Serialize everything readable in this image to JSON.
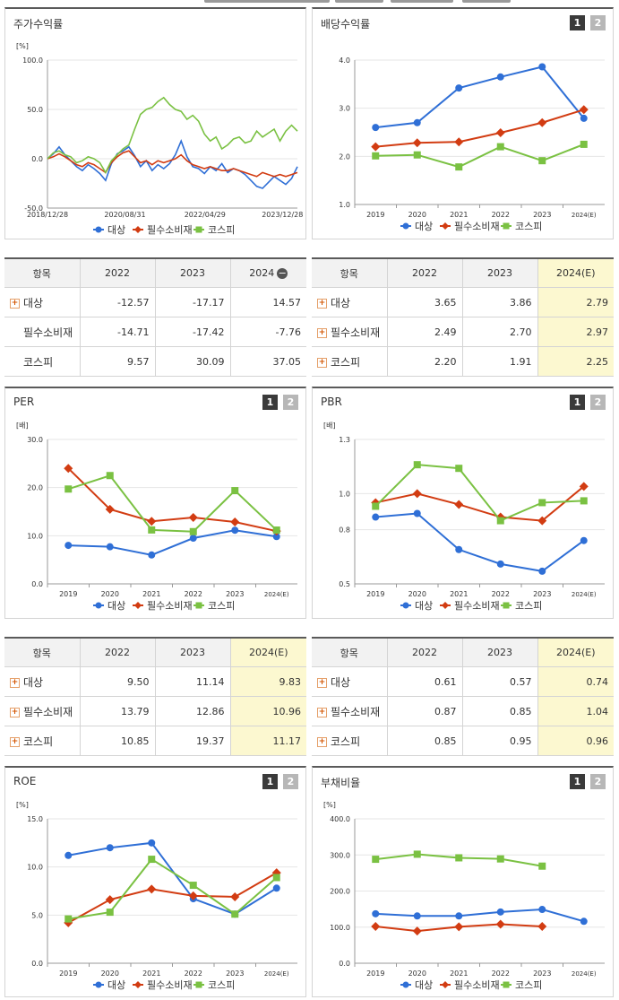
{
  "colors": {
    "daesang": "#2f6fd6",
    "consumer": "#d23c12",
    "kospi": "#7ac142"
  },
  "legend": [
    "대상",
    "필수소비재",
    "코스피"
  ],
  "panels": {
    "stock": {
      "title": "주가수익률"
    },
    "dividend": {
      "title": "배당수익률",
      "btn1": "1",
      "btn2": "2"
    },
    "per": {
      "title": "PER",
      "btn1": "1",
      "btn2": "2"
    },
    "pbr": {
      "title": "PBR",
      "btn1": "1",
      "btn2": "2"
    },
    "roe": {
      "title": "ROE",
      "btn1": "1",
      "btn2": "2"
    },
    "debt": {
      "title": "부채비율",
      "btn1": "1",
      "btn2": "2"
    }
  },
  "tables": {
    "stock": {
      "headers": [
        "항목",
        "2022",
        "2023",
        "2024"
      ],
      "minus": "−",
      "rows": [
        {
          "name": "대상",
          "plus": "+",
          "vals": [
            "-12.57",
            "-17.17",
            "14.57"
          ]
        },
        {
          "name": "필수소비재",
          "plus": "",
          "vals": [
            "-14.71",
            "-17.42",
            "-7.76"
          ]
        },
        {
          "name": "코스피",
          "plus": "",
          "vals": [
            "9.57",
            "30.09",
            "37.05"
          ]
        }
      ]
    },
    "dividend": {
      "headers": [
        "항목",
        "2022",
        "2023",
        "2024(E)"
      ],
      "rows": [
        {
          "name": "대상",
          "plus": "+",
          "vals": [
            "3.65",
            "3.86",
            "2.79"
          ]
        },
        {
          "name": "필수소비재",
          "plus": "+",
          "vals": [
            "2.49",
            "2.70",
            "2.97"
          ]
        },
        {
          "name": "코스피",
          "plus": "+",
          "vals": [
            "2.20",
            "1.91",
            "2.25"
          ]
        }
      ]
    },
    "per": {
      "headers": [
        "항목",
        "2022",
        "2023",
        "2024(E)"
      ],
      "rows": [
        {
          "name": "대상",
          "plus": "+",
          "vals": [
            "9.50",
            "11.14",
            "9.83"
          ]
        },
        {
          "name": "필수소비재",
          "plus": "+",
          "vals": [
            "13.79",
            "12.86",
            "10.96"
          ]
        },
        {
          "name": "코스피",
          "plus": "+",
          "vals": [
            "10.85",
            "19.37",
            "11.17"
          ]
        }
      ]
    },
    "pbr": {
      "headers": [
        "항목",
        "2022",
        "2023",
        "2024(E)"
      ],
      "rows": [
        {
          "name": "대상",
          "plus": "+",
          "vals": [
            "0.61",
            "0.57",
            "0.74"
          ]
        },
        {
          "name": "필수소비재",
          "plus": "+",
          "vals": [
            "0.87",
            "0.85",
            "1.04"
          ]
        },
        {
          "name": "코스피",
          "plus": "+",
          "vals": [
            "0.85",
            "0.95",
            "0.96"
          ]
        }
      ]
    }
  },
  "chart_data": [
    {
      "id": "stock",
      "type": "line",
      "title": "주가수익률",
      "ylabel": "[%]",
      "ylim": [
        -50,
        100
      ],
      "yticks": [
        "100.0",
        "50.0",
        "0.0",
        "-50.0"
      ],
      "xticks": [
        "2018/12/28",
        "2020/08/31",
        "2022/04/29",
        "2023/12/28"
      ],
      "series": [
        {
          "name": "대상",
          "values": [
            0,
            5,
            12,
            4,
            -2,
            -8,
            -12,
            -6,
            -10,
            -15,
            -22,
            -5,
            5,
            8,
            12,
            3,
            -8,
            -2,
            -12,
            -6,
            -10,
            -5,
            4,
            18,
            2,
            -8,
            -10,
            -15,
            -8,
            -12,
            -5,
            -14,
            -10,
            -12,
            -16,
            -22,
            -28,
            -30,
            -24,
            -18,
            -22,
            -26,
            -20,
            -8
          ]
        },
        {
          "name": "필수소비재",
          "values": [
            0,
            2,
            5,
            2,
            -2,
            -6,
            -8,
            -4,
            -6,
            -10,
            -14,
            -4,
            2,
            6,
            8,
            2,
            -4,
            -2,
            -6,
            -2,
            -4,
            -2,
            0,
            4,
            -2,
            -6,
            -8,
            -10,
            -8,
            -10,
            -12,
            -12,
            -10,
            -12,
            -14,
            -16,
            -18,
            -14,
            -16,
            -18,
            -16,
            -18,
            -16,
            -14
          ]
        },
        {
          "name": "코스피",
          "values": [
            0,
            6,
            8,
            4,
            2,
            -4,
            -2,
            2,
            0,
            -4,
            -14,
            -2,
            4,
            10,
            14,
            30,
            45,
            50,
            52,
            58,
            62,
            55,
            50,
            48,
            40,
            44,
            38,
            25,
            18,
            22,
            10,
            14,
            20,
            22,
            16,
            18,
            28,
            22,
            26,
            30,
            18,
            28,
            34,
            28
          ]
        }
      ]
    },
    {
      "id": "dividend",
      "type": "line",
      "title": "배당수익률",
      "ylim": [
        1.0,
        4.0
      ],
      "yticks": [
        "4.0",
        "3.0",
        "2.0",
        "1.0"
      ],
      "categories": [
        "2019",
        "2020",
        "2021",
        "2022",
        "2023",
        "2024(E)"
      ],
      "series": [
        {
          "name": "대상",
          "values": [
            2.6,
            2.7,
            3.42,
            3.65,
            3.86,
            2.79
          ]
        },
        {
          "name": "필수소비재",
          "values": [
            2.2,
            2.28,
            2.3,
            2.49,
            2.7,
            2.97
          ]
        },
        {
          "name": "코스피",
          "values": [
            2.01,
            2.03,
            1.78,
            2.2,
            1.91,
            2.25
          ]
        }
      ]
    },
    {
      "id": "per",
      "type": "line",
      "title": "PER",
      "ylabel": "[배]",
      "ylim": [
        0,
        30
      ],
      "yticks": [
        "30.0",
        "20.0",
        "10.0",
        "0.0"
      ],
      "categories": [
        "2019",
        "2020",
        "2021",
        "2022",
        "2023",
        "2024(E)"
      ],
      "series": [
        {
          "name": "대상",
          "values": [
            8.0,
            7.7,
            6.0,
            9.5,
            11.14,
            9.83
          ]
        },
        {
          "name": "필수소비재",
          "values": [
            24.0,
            15.5,
            13.0,
            13.79,
            12.86,
            10.96
          ]
        },
        {
          "name": "코스피",
          "values": [
            19.7,
            22.5,
            11.2,
            10.85,
            19.37,
            11.17
          ]
        }
      ]
    },
    {
      "id": "pbr",
      "type": "line",
      "title": "PBR",
      "ylabel": "[배]",
      "ylim": [
        0.5,
        1.3
      ],
      "yticks": [
        "1.3",
        "1.0",
        "0.8",
        "0.5"
      ],
      "categories": [
        "2019",
        "2020",
        "2021",
        "2022",
        "2023",
        "2024(E)"
      ],
      "series": [
        {
          "name": "대상",
          "values": [
            0.87,
            0.89,
            0.69,
            0.61,
            0.57,
            0.74
          ]
        },
        {
          "name": "필수소비재",
          "values": [
            0.95,
            1.0,
            0.94,
            0.87,
            0.85,
            1.04
          ]
        },
        {
          "name": "코스피",
          "values": [
            0.93,
            1.16,
            1.14,
            0.85,
            0.95,
            0.96
          ]
        }
      ]
    },
    {
      "id": "roe",
      "type": "line",
      "title": "ROE",
      "ylabel": "[%]",
      "ylim": [
        0,
        15
      ],
      "yticks": [
        "15.0",
        "10.0",
        "5.0",
        "0.0"
      ],
      "categories": [
        "2019",
        "2020",
        "2021",
        "2022",
        "2023",
        "2024(E)"
      ],
      "series": [
        {
          "name": "대상",
          "values": [
            11.2,
            12.0,
            12.5,
            6.7,
            5.1,
            7.8
          ]
        },
        {
          "name": "필수소비재",
          "values": [
            4.2,
            6.6,
            7.7,
            7.0,
            6.9,
            9.4
          ]
        },
        {
          "name": "코스피",
          "values": [
            4.6,
            5.3,
            10.8,
            8.1,
            5.1,
            8.9
          ]
        }
      ]
    },
    {
      "id": "debt",
      "type": "line",
      "title": "부채비율",
      "ylabel": "[%]",
      "ylim": [
        0,
        400
      ],
      "yticks": [
        "400.0",
        "300.0",
        "200.0",
        "100.0",
        "0.0"
      ],
      "categories": [
        "2019",
        "2020",
        "2021",
        "2022",
        "2023",
        "2024(E)"
      ],
      "series": [
        {
          "name": "대상",
          "values": [
            137,
            131,
            131,
            142,
            149,
            116
          ]
        },
        {
          "name": "필수소비재",
          "values": [
            102,
            89,
            101,
            108,
            102,
            null
          ]
        },
        {
          "name": "코스피",
          "values": [
            288,
            302,
            292,
            289,
            269,
            null
          ]
        }
      ]
    }
  ]
}
